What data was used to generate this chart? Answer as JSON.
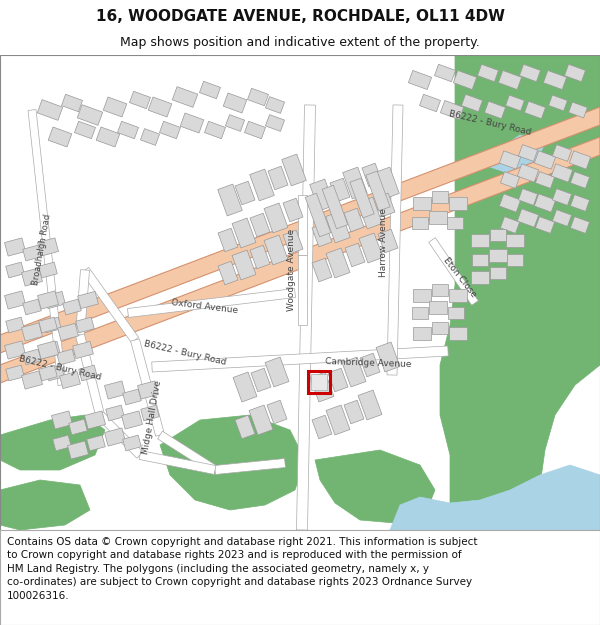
{
  "title_line1": "16, WOODGATE AVENUE, ROCHDALE, OL11 4DW",
  "title_line2": "Map shows position and indicative extent of the property.",
  "title_fontsize": 11,
  "subtitle_fontsize": 9,
  "footer_text": "Contains OS data © Crown copyright and database right 2021. This information is subject\nto Crown copyright and database rights 2023 and is reproduced with the permission of\nHM Land Registry. The polygons (including the associated geometry, namely x, y\nco-ordinates) are subject to Crown copyright and database rights 2023 Ordnance Survey\n100026316.",
  "footer_fontsize": 7.5,
  "map_bg": "#f5f5f5",
  "road_main_color": "#f5c9a8",
  "road_stroke_color": "#d4916e",
  "road_minor_color": "#ffffff",
  "road_minor_stroke": "#aaaaaa",
  "building_color": "#d9d9d9",
  "building_stroke": "#999999",
  "green_color": "#72b472",
  "water_color": "#aad4e6",
  "marker_color": "#cc0000",
  "footer_bg": "#ffffff",
  "header_bg": "#ffffff",
  "fig_width": 6.0,
  "fig_height": 6.25,
  "dpi": 100
}
